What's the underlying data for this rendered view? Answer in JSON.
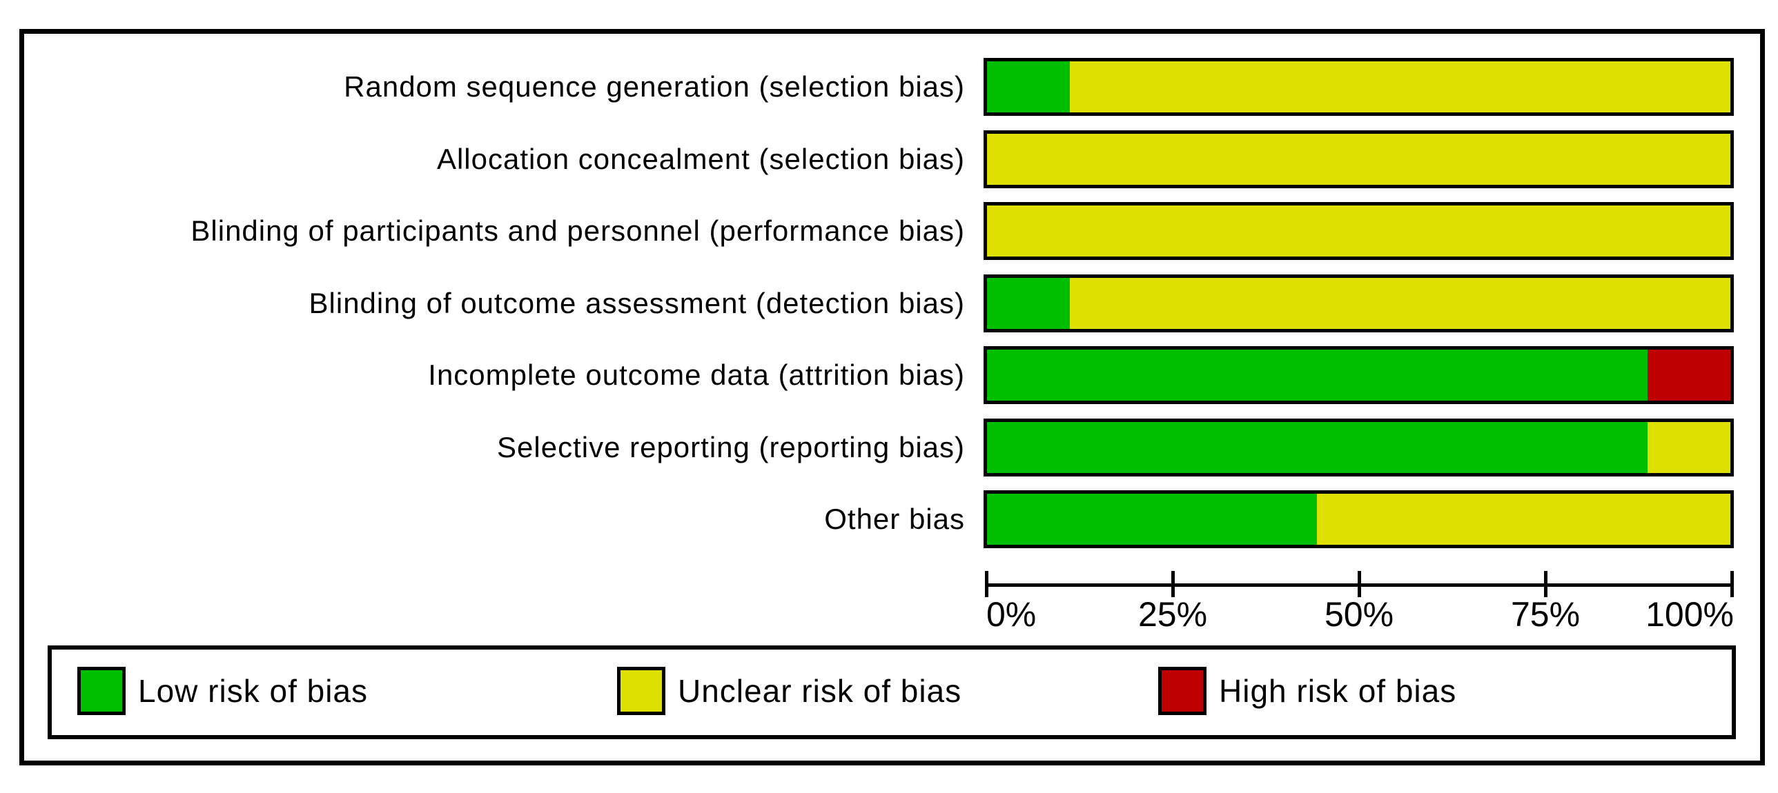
{
  "figure": {
    "description": "Risk of bias graph: review authors' judgements about each risk of bias item presented as percentages across all included studies"
  },
  "chart_data": {
    "type": "bar",
    "orientation": "horizontal",
    "stacked": true,
    "title": "",
    "xlabel": "",
    "ylabel": "",
    "categories": [
      "Random sequence generation (selection bias)",
      "Allocation concealment (selection bias)",
      "Blinding of participants and personnel (performance bias)",
      "Blinding of outcome assessment (detection bias)",
      "Incomplete outcome data (attrition bias)",
      "Selective reporting (reporting bias)",
      "Other bias"
    ],
    "series": [
      {
        "name": "Low risk of bias",
        "risk": "low",
        "color": "#00BF00",
        "values": [
          11.1,
          0,
          0,
          11.1,
          88.9,
          88.9,
          44.4
        ]
      },
      {
        "name": "Unclear risk of bias",
        "risk": "unclear",
        "color": "#DDE000",
        "values": [
          88.9,
          100,
          100,
          88.9,
          0,
          11.1,
          55.6
        ]
      },
      {
        "name": "High risk of bias",
        "risk": "high",
        "color": "#BF0000",
        "values": [
          0,
          0,
          0,
          0,
          11.1,
          0,
          0
        ]
      }
    ],
    "xlim": [
      0,
      100
    ],
    "x_ticks": [
      0,
      25,
      50,
      75,
      100
    ],
    "x_tick_labels": [
      "0%",
      "25%",
      "50%",
      "75%",
      "100%"
    ],
    "grid": false,
    "legend_position": "bottom",
    "legend": [
      {
        "label": "Low risk of bias",
        "color": "#00BF00"
      },
      {
        "label": "Unclear risk of bias",
        "color": "#DDE000"
      },
      {
        "label": "High risk of bias",
        "color": "#BF0000"
      }
    ]
  },
  "colors": {
    "background": "#FFFFFF",
    "border": "#000000",
    "text": "#000000"
  }
}
